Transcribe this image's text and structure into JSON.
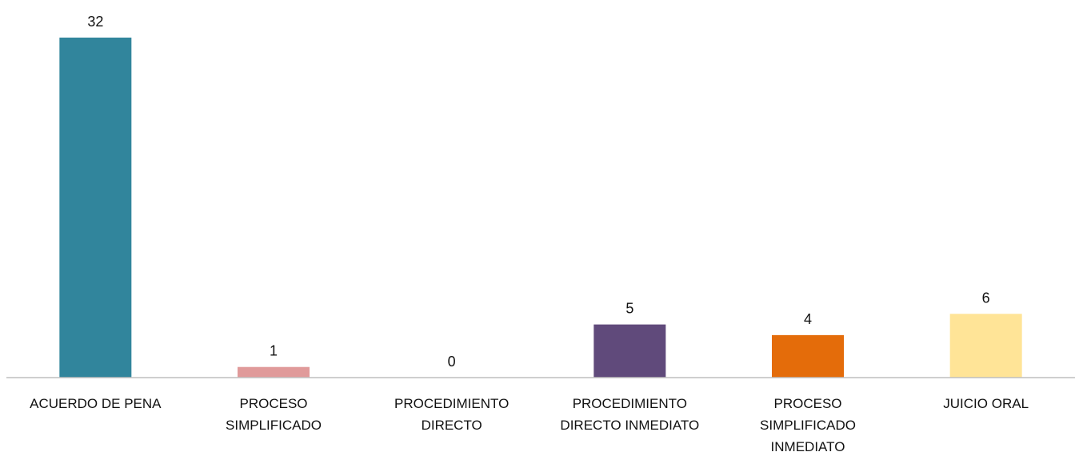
{
  "chart_data": {
    "type": "bar",
    "title": "",
    "xlabel": "",
    "ylabel": "",
    "ylim": [
      0,
      32
    ],
    "grid": false,
    "legend": "none",
    "categories": [
      [
        "ACUERDO DE PENA"
      ],
      [
        "PROCESO",
        "SIMPLIFICADO"
      ],
      [
        "PROCEDIMIENTO",
        "DIRECTO"
      ],
      [
        "PROCEDIMIENTO",
        "DIRECTO INMEDIATO"
      ],
      [
        "PROCESO",
        "SIMPLIFICADO",
        "INMEDIATO"
      ],
      [
        "JUICIO ORAL"
      ]
    ],
    "values": [
      32,
      1,
      0,
      5,
      4,
      6
    ],
    "colors": [
      "#31859C",
      "#E09A9A",
      "#BFBFBF",
      "#604A7B",
      "#E46C0A",
      "#FFE497"
    ]
  }
}
